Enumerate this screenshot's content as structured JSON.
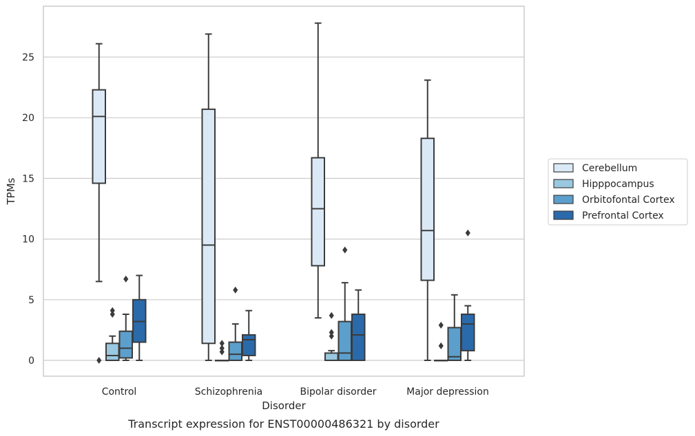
{
  "caption": "Transcript expression for ENST00000486321 by disorder",
  "chart_data": {
    "type": "box",
    "xlabel": "Disorder",
    "ylabel": "TPMs",
    "ylim": [
      -1.3,
      29.0
    ],
    "yticks": [
      0,
      5,
      10,
      15,
      20,
      25
    ],
    "grid": "horizontal",
    "legend_position": "right",
    "categories": [
      "Control",
      "Schizophrenia",
      "Bipolar disorder",
      "Major depression"
    ],
    "series": [
      {
        "name": "Cerebellum",
        "color": "#dbe9f6",
        "boxes": [
          {
            "whisker_low": 6.5,
            "q1": 14.6,
            "median": 20.1,
            "q3": 22.3,
            "whisker_high": 26.1,
            "outliers": [
              0.0
            ]
          },
          {
            "whisker_low": 0.0,
            "q1": 1.4,
            "median": 9.5,
            "q3": 20.7,
            "whisker_high": 26.9,
            "outliers": []
          },
          {
            "whisker_low": 3.5,
            "q1": 7.8,
            "median": 12.5,
            "q3": 16.7,
            "whisker_high": 27.8,
            "outliers": []
          },
          {
            "whisker_low": 0.0,
            "q1": 6.6,
            "median": 10.7,
            "q3": 18.3,
            "whisker_high": 23.1,
            "outliers": []
          }
        ]
      },
      {
        "name": "Hipppocampus",
        "color": "#9ac8e0",
        "boxes": [
          {
            "whisker_low": 0.0,
            "q1": 0.0,
            "median": 0.4,
            "q3": 1.4,
            "whisker_high": 2.0,
            "outliers": [
              3.8,
              4.1
            ]
          },
          {
            "whisker_low": 0.0,
            "q1": 0.0,
            "median": 0.0,
            "q3": 0.0,
            "whisker_high": 0.0,
            "outliers": [
              0.7,
              1.0,
              1.4
            ]
          },
          {
            "whisker_low": 0.0,
            "q1": 0.0,
            "median": 0.0,
            "q3": 0.6,
            "whisker_high": 0.8,
            "outliers": [
              2.0,
              2.3,
              3.7
            ]
          },
          {
            "whisker_low": 0.0,
            "q1": 0.0,
            "median": 0.0,
            "q3": 0.0,
            "whisker_high": 0.0,
            "outliers": [
              1.2,
              2.9
            ]
          }
        ]
      },
      {
        "name": "Orbitofontal Cortex",
        "color": "#5c9fcc",
        "boxes": [
          {
            "whisker_low": 0.0,
            "q1": 0.2,
            "median": 1.0,
            "q3": 2.4,
            "whisker_high": 3.8,
            "outliers": [
              6.7
            ]
          },
          {
            "whisker_low": 0.0,
            "q1": 0.0,
            "median": 0.5,
            "q3": 1.5,
            "whisker_high": 3.0,
            "outliers": [
              5.8
            ]
          },
          {
            "whisker_low": 0.0,
            "q1": 0.0,
            "median": 0.6,
            "q3": 3.2,
            "whisker_high": 6.4,
            "outliers": [
              9.1
            ]
          },
          {
            "whisker_low": 0.0,
            "q1": 0.0,
            "median": 0.3,
            "q3": 2.7,
            "whisker_high": 5.4,
            "outliers": []
          }
        ]
      },
      {
        "name": "Prefrontal Cortex",
        "color": "#2a6aab",
        "boxes": [
          {
            "whisker_low": 0.0,
            "q1": 1.5,
            "median": 3.2,
            "q3": 5.0,
            "whisker_high": 7.0,
            "outliers": []
          },
          {
            "whisker_low": 0.0,
            "q1": 0.4,
            "median": 1.7,
            "q3": 2.1,
            "whisker_high": 4.1,
            "outliers": []
          },
          {
            "whisker_low": 0.0,
            "q1": 0.0,
            "median": 2.1,
            "q3": 3.8,
            "whisker_high": 5.8,
            "outliers": []
          },
          {
            "whisker_low": 0.0,
            "q1": 0.8,
            "median": 3.0,
            "q3": 3.8,
            "whisker_high": 4.5,
            "outliers": [
              10.5
            ]
          }
        ]
      }
    ]
  }
}
